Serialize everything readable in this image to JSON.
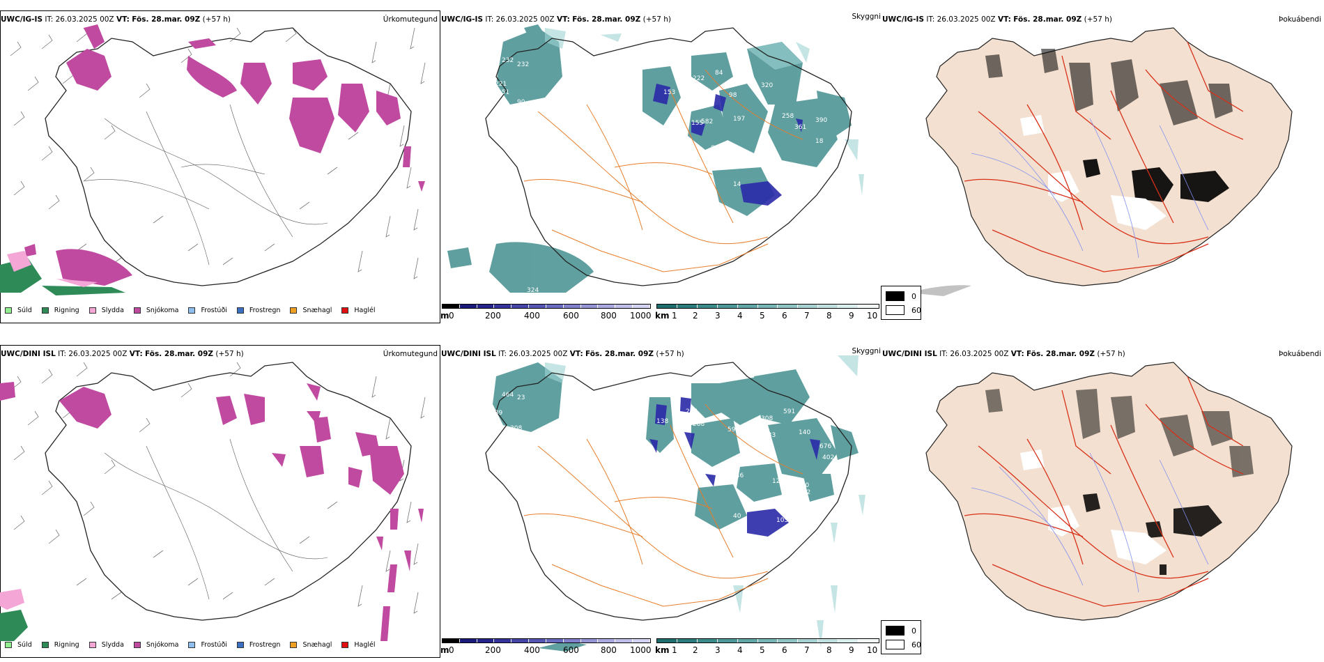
{
  "rows": [
    {
      "model": "UWC/IG-IS",
      "it_label": "IT:",
      "it_value": "26.03.2025 00Z",
      "vt_label": "VT:",
      "vt_value": "Fös. 28.mar. 09Z",
      "lead": "(+57 h)",
      "panel_titles": [
        "Úrkomutegund",
        "Skyggni",
        "Þokuábendi"
      ],
      "visibility_labels": [
        "232",
        "232",
        "151",
        "221",
        "90",
        "42",
        "120",
        "153",
        "220",
        "222",
        "84",
        "320",
        "98",
        "155",
        "197",
        "582",
        "39",
        "258",
        "361",
        "390",
        "82",
        "135",
        "577",
        "18",
        "14",
        "97",
        "335",
        "324"
      ]
    },
    {
      "model": "UWC/DINI ISL",
      "it_label": "IT:",
      "it_value": "26.03.2025 00Z",
      "vt_label": "VT:",
      "vt_value": "Fös. 28.mar. 09Z",
      "lead": "(+57 h)",
      "panel_titles": [
        "Úrkomutegund",
        "Skyggni",
        "Þokuábendi"
      ],
      "visibility_labels": [
        "464",
        "23",
        "289",
        "308",
        "138",
        "244",
        "288",
        "591",
        "308",
        "599",
        "083",
        "140",
        "676",
        "186",
        "402",
        "388",
        "146",
        "12",
        "280",
        "202",
        "40",
        "105",
        "283",
        "10"
      ]
    }
  ],
  "precip_legend": [
    {
      "label": "Súld",
      "color": "#90ee90"
    },
    {
      "label": "Rigning",
      "color": "#2e8b57"
    },
    {
      "label": "Slydda",
      "color": "#f4a6d7"
    },
    {
      "label": "Snjókoma",
      "color": "#c04aa0"
    },
    {
      "label": "Frostúði",
      "color": "#8fbfef"
    },
    {
      "label": "Frostregn",
      "color": "#3a6fc4"
    },
    {
      "label": "Snæhagl",
      "color": "#f0a020"
    },
    {
      "label": "Haglél",
      "color": "#e01010"
    }
  ],
  "height_scale": {
    "unit": "m",
    "ticks": [
      "0",
      "200",
      "400",
      "600",
      "800",
      "1000"
    ],
    "colors": [
      "#000000",
      "#1a1a7a",
      "#24248a",
      "#33339a",
      "#4545a8",
      "#5555b4",
      "#6a6ac0",
      "#8080cc",
      "#9595d6",
      "#aaaae0",
      "#bfbfea",
      "#d4d4f2"
    ]
  },
  "visibility_scale": {
    "unit": "km",
    "ticks": [
      "1",
      "2",
      "3",
      "4",
      "5",
      "6",
      "7",
      "8",
      "9",
      "10"
    ],
    "colors": [
      "#1f6e6e",
      "#2b7d7d",
      "#3b8b8b",
      "#4d9999",
      "#62a7a7",
      "#78b6b6",
      "#90c4c4",
      "#a8d2d2",
      "#c2e0e0",
      "#dcefef",
      "#f2f8f8"
    ]
  },
  "fog_legend": {
    "items": [
      {
        "label": "0",
        "color": "#000000"
      },
      {
        "label": "60",
        "color": "#ffffff"
      }
    ]
  },
  "colors": {
    "snow": "#c04aa0",
    "rain": "#2e8b57",
    "sleet": "#f4a6d7",
    "teal": "#2b8080",
    "blue": "#2a2aa8",
    "land": "#f3e0d0",
    "road": "#e87d2a",
    "redroad": "#d83018",
    "river": "#7f8ff0"
  }
}
